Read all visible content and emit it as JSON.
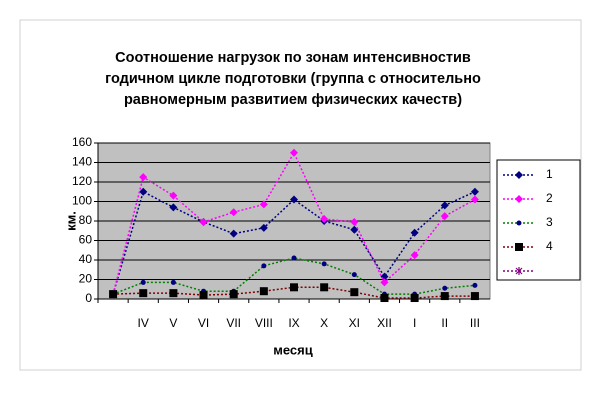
{
  "chart_data": {
    "type": "line",
    "title": [
      "Соотношение нагрузок по зонам интенсивностив",
      "годичном цикле подготовки (группа с относительно",
      "равномерным развитием физических качеств)"
    ],
    "y_label": "км.",
    "x_label": "месяц",
    "categories": [
      null,
      "IV",
      "V",
      "VI",
      "VII",
      "VIII",
      "IX",
      "X",
      "XI",
      "XII",
      "I",
      "II",
      "III"
    ],
    "ylim": [
      0,
      160
    ],
    "yticks": [
      0,
      20,
      40,
      60,
      80,
      100,
      120,
      140,
      160
    ],
    "grid": true,
    "legend": "right",
    "series": [
      {
        "name": "1",
        "color": "#000080",
        "marker_color": "#000080",
        "marker": "diamond",
        "values": [
          5,
          110,
          94,
          79,
          67,
          73,
          102,
          80,
          71,
          23,
          68,
          96,
          110
        ]
      },
      {
        "name": "2",
        "color": "#ff00ff",
        "marker_color": "#ff00ff",
        "marker": "diamond",
        "values": [
          5,
          125,
          106,
          79,
          89,
          97,
          150,
          82,
          79,
          17,
          45,
          85,
          102
        ]
      },
      {
        "name": "3",
        "color": "#008000",
        "marker_color": "#000080",
        "marker": "circle",
        "values": [
          5,
          17,
          17,
          8,
          8,
          34,
          42,
          36,
          25,
          5,
          5,
          11,
          14
        ]
      },
      {
        "name": "4",
        "color": "#800000",
        "marker_color": "#000000",
        "marker": "square",
        "values": [
          5,
          6,
          6,
          4,
          5,
          8,
          12,
          12,
          7,
          1,
          1,
          3,
          3
        ]
      },
      {
        "color": "#800080",
        "marker_color": "#800080",
        "marker": "star",
        "values": [
          null,
          null,
          null,
          null,
          null,
          null,
          null,
          null,
          null,
          null,
          null,
          null,
          null
        ]
      }
    ]
  }
}
